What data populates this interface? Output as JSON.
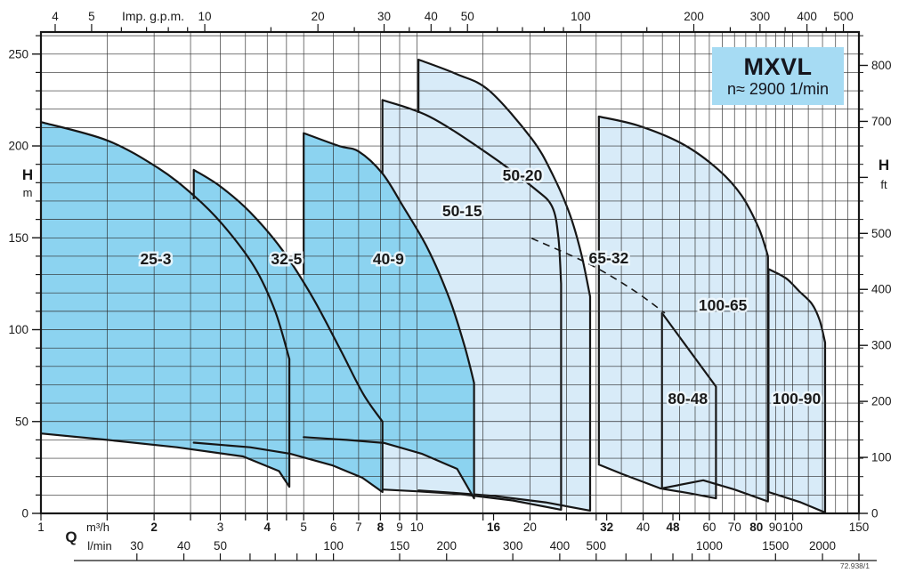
{
  "title_box": {
    "title": "MXVL",
    "subtitle": "n≈ 2900 1/min"
  },
  "note": "72.938/1",
  "colors": {
    "dark_fill": "#8CD3F0",
    "light_fill": "#D8EBF8",
    "title_box_bg": "#A6DBF3",
    "stroke": "#161616",
    "grid": "#2b2b2b",
    "text": "#1a1a1a",
    "label_halo": "rgba(240,248,253,0.88)"
  },
  "chart_data": {
    "type": "area",
    "title": "MXVL",
    "subtitle": "n≈ 2900 1/min",
    "x_scale": "log",
    "x_range": [
      1,
      150
    ],
    "y_range": [
      0,
      262
    ],
    "x_quantity": "Q",
    "x_unit_bottom": "m³/h",
    "x_unit_bottom2": "l/min",
    "x_unit_top": "Imp. g.p.m.",
    "y_quantity_left": "H",
    "y_unit_left": "m",
    "y_quantity_right": "H",
    "y_unit_right": "ft",
    "gpm_per_m3h": 3.666,
    "lmin_per_m3h": 16.667,
    "ft_per_m": 3.2808,
    "axes": {
      "gpm_labels": [
        4,
        5,
        10,
        20,
        30,
        40,
        50,
        100,
        200,
        300,
        400,
        500
      ],
      "gpm_ticks": [
        4,
        5,
        6,
        7,
        8,
        9,
        10,
        15,
        20,
        25,
        30,
        35,
        40,
        45,
        50,
        60,
        70,
        80,
        90,
        100,
        150,
        200,
        250,
        300,
        350,
        400,
        450,
        500
      ],
      "m3h_labels": [
        1,
        2,
        3,
        4,
        5,
        6,
        7,
        8,
        9,
        10,
        16,
        20,
        32,
        40,
        48,
        60,
        70,
        80,
        90,
        100,
        150
      ],
      "m3h_bold": [
        2,
        4,
        8,
        16,
        32,
        48,
        80
      ],
      "m3h_ticks": [
        1,
        1.5,
        2,
        2.5,
        3,
        3.5,
        4,
        4.5,
        5,
        6,
        7,
        8,
        9,
        10,
        15,
        16,
        20,
        25,
        30,
        32,
        40,
        48,
        50,
        60,
        70,
        80,
        90,
        100,
        150
      ],
      "lmin_labels": [
        30,
        40,
        50,
        100,
        150,
        200,
        300,
        400,
        500,
        1000,
        1500,
        2000
      ],
      "lmin_ticks": [
        30,
        40,
        50,
        60,
        70,
        80,
        90,
        100,
        150,
        200,
        300,
        400,
        500,
        600,
        700,
        800,
        900,
        1000,
        1500,
        2000,
        2500
      ],
      "left_m_major": [
        0,
        50,
        100,
        150,
        200,
        250
      ],
      "left_m_minor_step": 10,
      "right_ft_labeled": [
        0,
        100,
        200,
        300,
        400,
        500,
        700,
        800
      ],
      "right_ft_ticks": [
        0,
        100,
        200,
        300,
        400,
        500,
        600,
        700,
        800
      ]
    },
    "grid": {
      "q_lines": [
        1.5,
        2,
        2.5,
        3,
        3.5,
        4,
        4.5,
        5,
        6,
        7,
        8,
        9,
        10,
        15,
        20,
        25,
        30,
        35,
        40,
        45,
        50,
        55,
        60,
        65,
        70,
        75,
        80,
        85,
        90,
        95,
        100,
        110,
        120,
        130,
        140
      ],
      "h_step": 10,
      "h_max": 260
    },
    "envelopes": [
      {
        "name": "range-50-15",
        "tone": "light",
        "top": [
          [
            8.1,
            225
          ],
          [
            10.8,
            216
          ],
          [
            15.4,
            196
          ],
          [
            20.5,
            177
          ],
          [
            22.9,
            167
          ],
          [
            23.8,
            150
          ],
          [
            24.2,
            125
          ]
        ],
        "bottom": [
          [
            24.2,
            2
          ],
          [
            18,
            7
          ],
          [
            13,
            10.5
          ],
          [
            10,
            12
          ],
          [
            8.1,
            13
          ]
        ],
        "step": [
          8.1,
          225,
          185
        ]
      },
      {
        "name": "range-50-20",
        "tone": "light",
        "top": [
          [
            10.1,
            247
          ],
          [
            12.8,
            239
          ],
          [
            15.6,
            230
          ],
          [
            20.2,
            204
          ],
          [
            22.9,
            185
          ],
          [
            25.5,
            163
          ],
          [
            27.4,
            141
          ],
          [
            28.9,
            118
          ]
        ],
        "bottom": [
          [
            28.9,
            1.5
          ],
          [
            22,
            6
          ],
          [
            16,
            9.5
          ],
          [
            12,
            11.5
          ],
          [
            10.1,
            12.5
          ]
        ],
        "step": [
          10.1,
          247,
          218
        ]
      },
      {
        "name": "range-65-32-100-65",
        "tone": "light",
        "top": [
          [
            30.5,
            216
          ],
          [
            38.9,
            211
          ],
          [
            51,
            201
          ],
          [
            63.5,
            187
          ],
          [
            73.1,
            173
          ],
          [
            81.3,
            155
          ],
          [
            85.9,
            140
          ]
        ],
        "bottom": [
          [
            85.9,
            6.5
          ],
          [
            70,
            13
          ],
          [
            57.8,
            18
          ],
          [
            44.6,
            13.5
          ],
          [
            35.3,
            21.3
          ],
          [
            30.5,
            26.6
          ]
        ],
        "step": [
          30.5,
          216,
          27
        ]
      },
      {
        "name": "range-80-48",
        "tone": "light",
        "top": [
          [
            44.9,
            109
          ],
          [
            62.5,
            69
          ]
        ],
        "bottom": [
          [
            62.5,
            8.2
          ],
          [
            53,
            11
          ],
          [
            44.9,
            13.4
          ]
        ],
        "step": [
          44.9,
          109,
          13.4
        ]
      },
      {
        "name": "range-100-90",
        "tone": "light",
        "top": [
          [
            86.2,
            133
          ],
          [
            95.9,
            128
          ],
          [
            103.9,
            121
          ],
          [
            112.5,
            114
          ],
          [
            118,
            105
          ],
          [
            121.9,
            93
          ]
        ],
        "bottom": [
          [
            121.9,
            0.5
          ],
          [
            105,
            6
          ],
          [
            93,
            9.5
          ],
          [
            86.2,
            11.6
          ]
        ],
        "step": [
          86.2,
          133,
          11.6
        ]
      },
      {
        "name": "range-25-3",
        "tone": "dark",
        "top": [
          [
            1,
            213
          ],
          [
            1.5,
            203
          ],
          [
            2.05,
            188
          ],
          [
            2.55,
            173
          ],
          [
            3.05,
            157
          ],
          [
            3.7,
            134
          ],
          [
            4.2,
            110
          ],
          [
            4.58,
            84
          ]
        ],
        "bottom": [
          [
            4.58,
            14.5
          ],
          [
            4.3,
            23
          ],
          [
            3.45,
            31
          ],
          [
            2.3,
            36
          ],
          [
            1.5,
            40
          ],
          [
            1,
            43.5
          ]
        ],
        "step": null
      },
      {
        "name": "range-32-5",
        "tone": "dark",
        "top": [
          [
            2.55,
            187
          ],
          [
            3.0,
            178
          ],
          [
            3.6,
            164
          ],
          [
            4.4,
            143
          ],
          [
            5.3,
            117
          ],
          [
            6.3,
            88
          ],
          [
            7.2,
            65
          ],
          [
            8.1,
            50
          ]
        ],
        "bottom": [
          [
            8.1,
            11.6
          ],
          [
            7.16,
            19.4
          ],
          [
            5.95,
            26.2
          ],
          [
            4.6,
            32.5
          ],
          [
            3.6,
            36
          ],
          [
            2.55,
            38.5
          ]
        ],
        "step": [
          2.55,
          187,
          171
        ]
      },
      {
        "name": "range-40-9",
        "tone": "dark",
        "top": [
          [
            5,
            207
          ],
          [
            6.2,
            200
          ],
          [
            7,
            197
          ],
          [
            8.1,
            185
          ],
          [
            9.2,
            167
          ],
          [
            10.7,
            144
          ],
          [
            12.2,
            117
          ],
          [
            13.4,
            91
          ],
          [
            14.2,
            71
          ]
        ],
        "bottom": [
          [
            14.2,
            8.2
          ],
          [
            12.8,
            24.2
          ],
          [
            10.3,
            32.5
          ],
          [
            8.2,
            38.3
          ],
          [
            6.5,
            40
          ],
          [
            5,
            41.5
          ]
        ],
        "step": [
          5,
          207,
          130
        ]
      }
    ],
    "labels": [
      {
        "text": "25-3",
        "at": [
          2.02,
          138.6
        ]
      },
      {
        "text": "32-5",
        "at": [
          4.5,
          138.6
        ]
      },
      {
        "text": "40-9",
        "at": [
          8.4,
          138.6
        ]
      },
      {
        "text": "50-15",
        "at": [
          13.2,
          164.7
        ]
      },
      {
        "text": "50-20",
        "at": [
          19.1,
          184.1
        ]
      },
      {
        "text": "65-32",
        "at": [
          32.4,
          139.0
        ]
      },
      {
        "text": "100-65",
        "at": [
          65.2,
          113.4
        ]
      },
      {
        "text": "80-48",
        "at": [
          52.6,
          62.5
        ]
      },
      {
        "text": "100-90",
        "at": [
          102.4,
          62.5
        ]
      }
    ],
    "dashed_reference_line": [
      [
        20.2,
        149.7
      ],
      [
        28.5,
        136.1
      ],
      [
        37.3,
        122.1
      ],
      [
        45.7,
        109
      ]
    ]
  }
}
